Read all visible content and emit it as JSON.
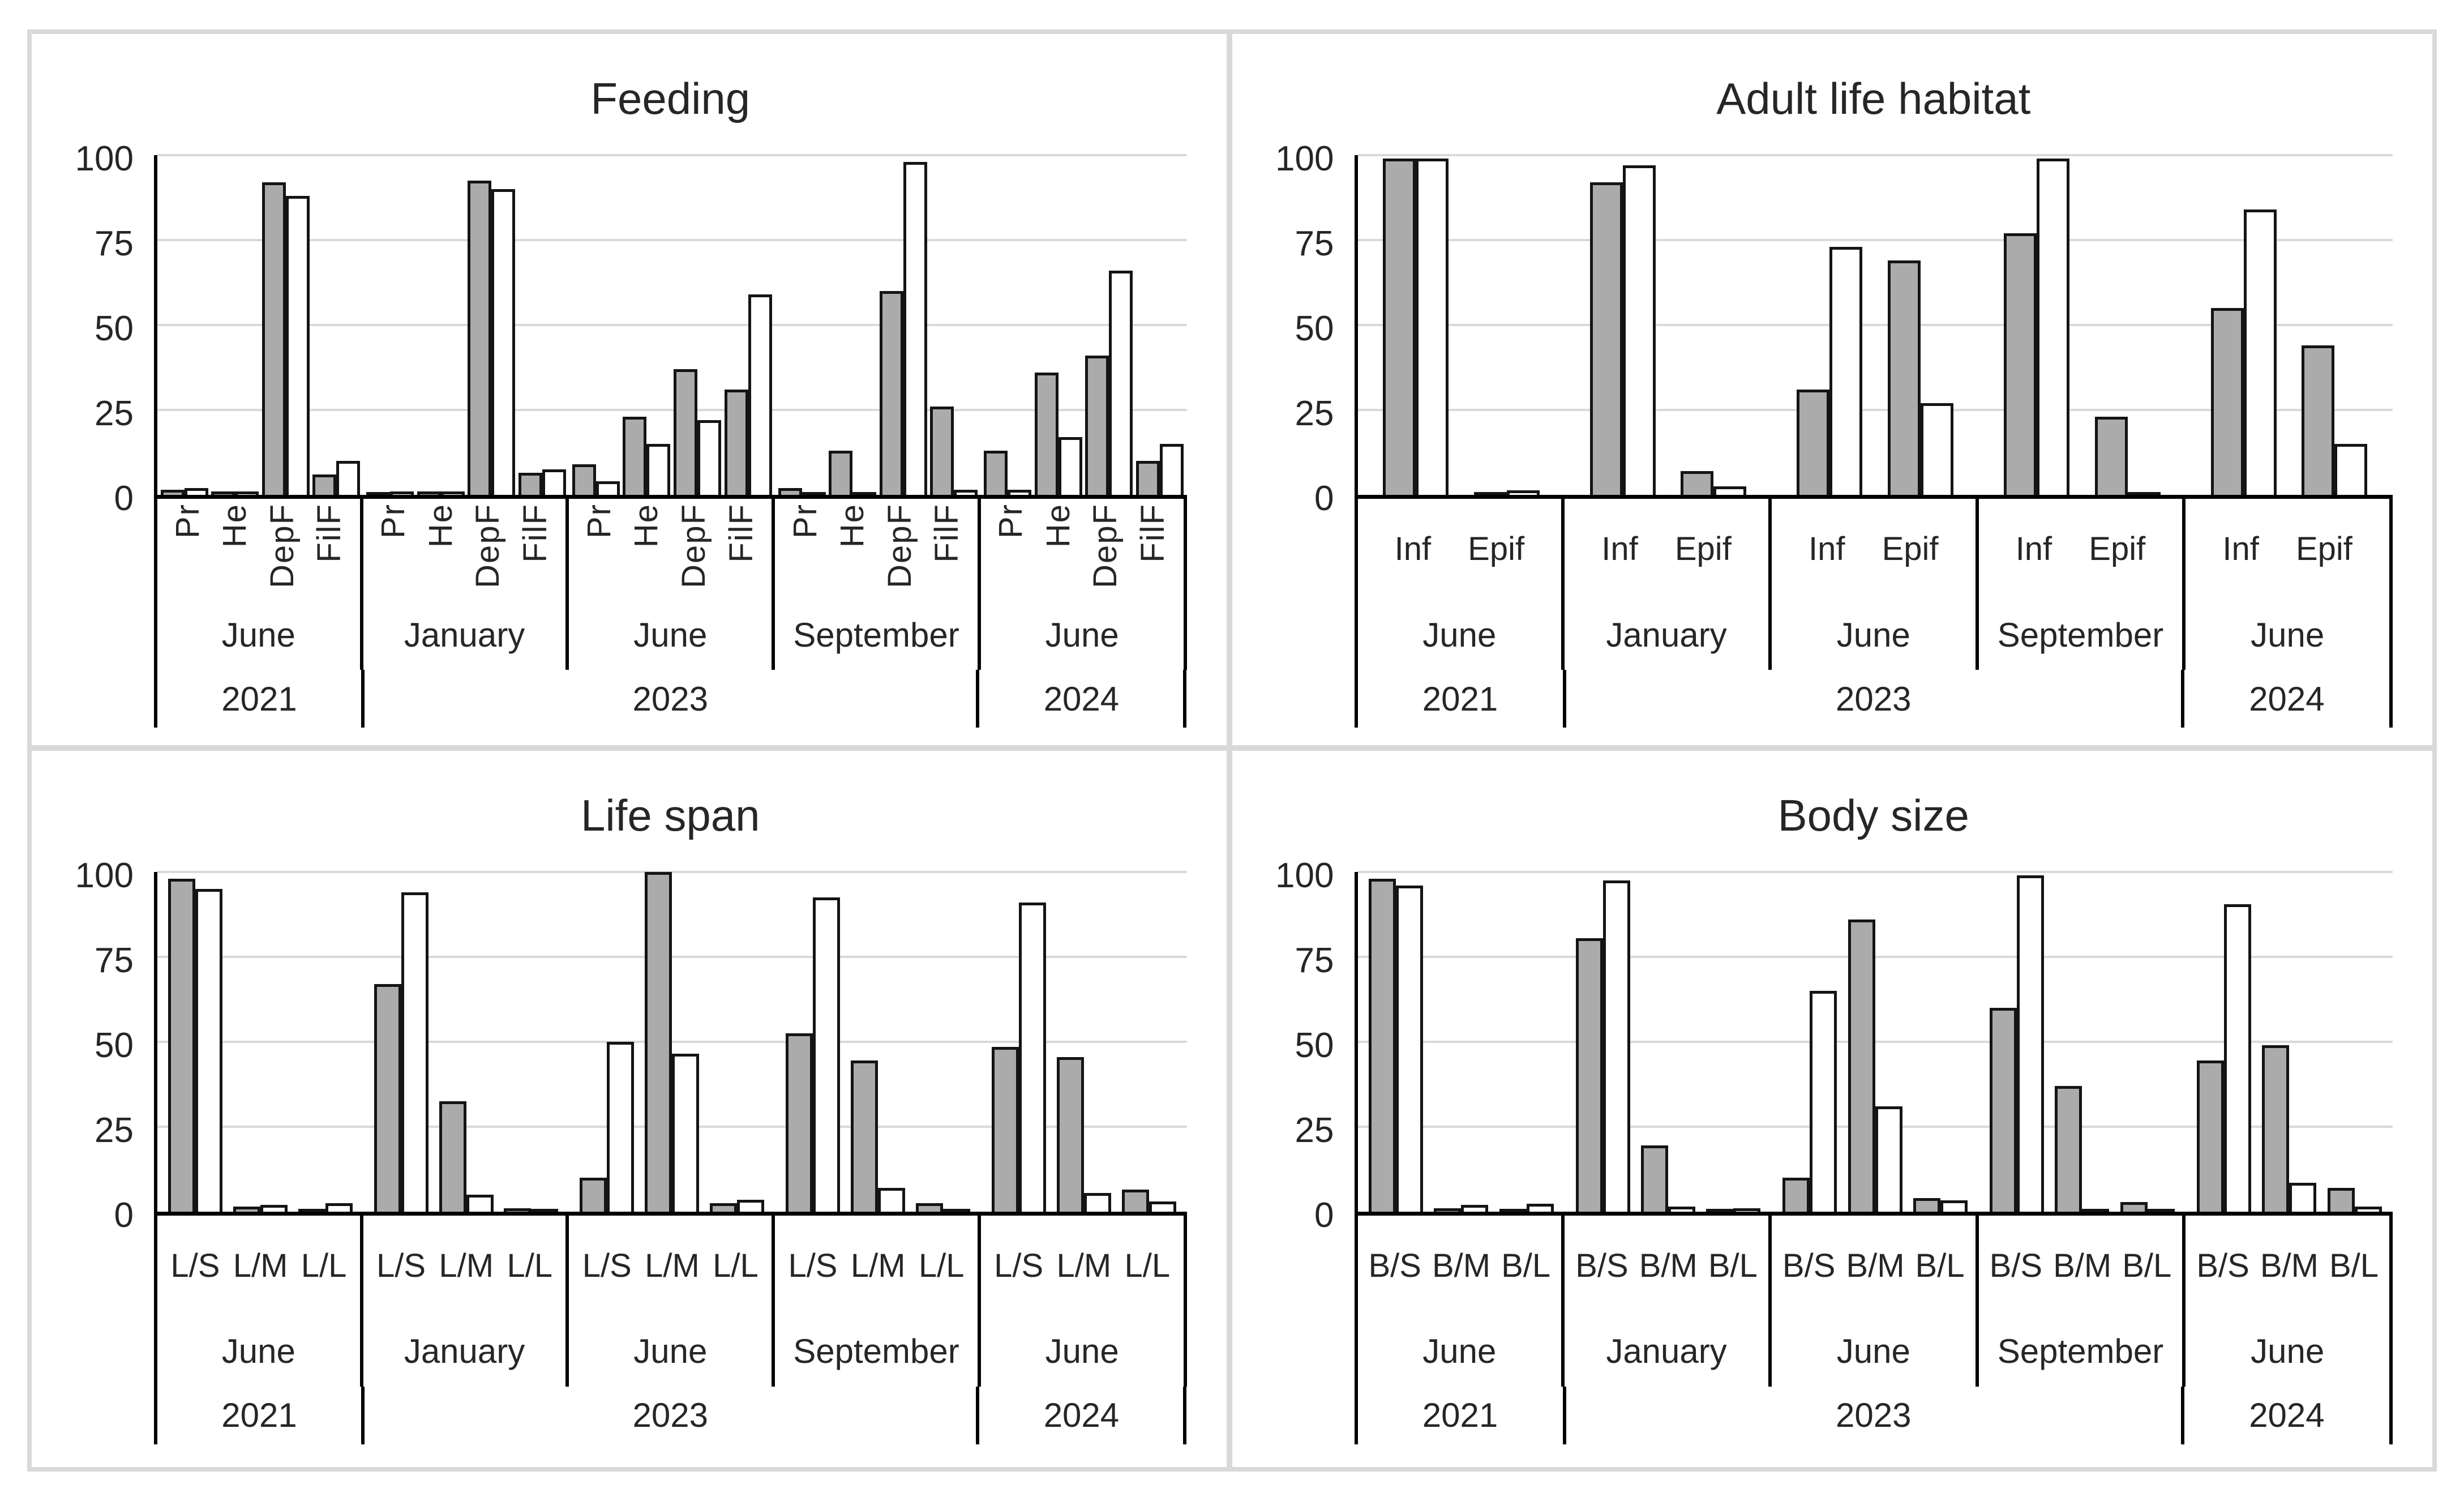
{
  "figure": {
    "background": "#ffffff",
    "frame_color": "#d9d9d9",
    "gridline_color": "#d9d9d9",
    "axis_color": "#000000",
    "bar_outline_color": "#141414",
    "series": [
      {
        "name": "gray",
        "color": "#ababab"
      },
      {
        "name": "white",
        "color": "#ffffff"
      }
    ]
  },
  "chart_data": [
    {
      "type": "bar",
      "title": "Feeding",
      "xlabel": "",
      "ylabel": "",
      "ylim": [
        0,
        100
      ],
      "yticks": [
        0,
        25,
        50,
        75,
        100
      ],
      "grid": true,
      "legend": "none",
      "layout": {
        "category_labels": "vertical"
      },
      "groups": [
        {
          "month": "June",
          "year": "2021",
          "categories": [
            "Pr",
            "He",
            "DepF",
            "FilF"
          ],
          "series": {
            "gray": [
              1.5,
              1,
              92,
              6
            ],
            "white": [
              2,
              1,
              88,
              10
            ]
          }
        },
        {
          "month": "January",
          "year": "2023",
          "categories": [
            "Pr",
            "He",
            "DepF",
            "FilF"
          ],
          "series": {
            "gray": [
              0.7,
              1,
              92.5,
              6.5
            ],
            "white": [
              1,
              1,
              90,
              7.5
            ]
          }
        },
        {
          "month": "June",
          "year": "2023",
          "categories": [
            "Pr",
            "He",
            "DepF",
            "FilF"
          ],
          "series": {
            "gray": [
              9,
              23,
              37,
              31
            ],
            "white": [
              4,
              15,
              22,
              59
            ]
          }
        },
        {
          "month": "September",
          "year": "2023",
          "categories": [
            "Pr",
            "He",
            "DepF",
            "FilF"
          ],
          "series": {
            "gray": [
              2,
              13,
              60,
              26
            ],
            "white": [
              0.3,
              0.5,
              98,
              1.5
            ]
          }
        },
        {
          "month": "June",
          "year": "2024",
          "categories": [
            "Pr",
            "He",
            "DepF",
            "FilF"
          ],
          "series": {
            "gray": [
              13,
              36,
              41,
              10
            ],
            "white": [
              1.5,
              17,
              66,
              15
            ]
          }
        }
      ],
      "years": [
        {
          "label": "2021",
          "span": 1
        },
        {
          "label": "2023",
          "span": 3
        },
        {
          "label": "2024",
          "span": 1
        }
      ]
    },
    {
      "type": "bar",
      "title": "Adult life habitat",
      "xlabel": "",
      "ylabel": "",
      "ylim": [
        0,
        100
      ],
      "yticks": [
        0,
        25,
        50,
        75,
        100
      ],
      "grid": true,
      "legend": "none",
      "layout": {
        "category_labels": "horizontal"
      },
      "groups": [
        {
          "month": "June",
          "year": "2021",
          "categories": [
            "Inf",
            "Epif"
          ],
          "series": {
            "gray": [
              99,
              0.8
            ],
            "white": [
              99,
              1.3
            ]
          }
        },
        {
          "month": "January",
          "year": "2023",
          "categories": [
            "Inf",
            "Epif"
          ],
          "series": {
            "gray": [
              92,
              7
            ],
            "white": [
              97,
              2.5
            ]
          }
        },
        {
          "month": "June",
          "year": "2023",
          "categories": [
            "Inf",
            "Epif"
          ],
          "series": {
            "gray": [
              31,
              69
            ],
            "white": [
              73,
              27
            ]
          }
        },
        {
          "month": "September",
          "year": "2023",
          "categories": [
            "Inf",
            "Epif"
          ],
          "series": {
            "gray": [
              77,
              23
            ],
            "white": [
              99,
              0.7
            ]
          }
        },
        {
          "month": "June",
          "year": "2024",
          "categories": [
            "Inf",
            "Epif"
          ],
          "series": {
            "gray": [
              55,
              44
            ],
            "white": [
              84,
              15
            ]
          }
        }
      ],
      "years": [
        {
          "label": "2021",
          "span": 1
        },
        {
          "label": "2023",
          "span": 3
        },
        {
          "label": "2024",
          "span": 1
        }
      ]
    },
    {
      "type": "bar",
      "title": "Life span",
      "xlabel": "",
      "ylabel": "",
      "ylim": [
        0,
        100
      ],
      "yticks": [
        0,
        25,
        50,
        75,
        100
      ],
      "grid": true,
      "legend": "none",
      "layout": {
        "category_labels": "horizontal"
      },
      "groups": [
        {
          "month": "June",
          "year": "2021",
          "categories": [
            "L/S",
            "L/M",
            "L/L"
          ],
          "series": {
            "gray": [
              98,
              1.5,
              0.5
            ],
            "white": [
              95,
              2,
              2.5
            ]
          }
        },
        {
          "month": "January",
          "year": "2023",
          "categories": [
            "L/S",
            "L/M",
            "L/L"
          ],
          "series": {
            "gray": [
              67,
              32.5,
              1
            ],
            "white": [
              94,
              5,
              0.3
            ]
          }
        },
        {
          "month": "June",
          "year": "2023",
          "categories": [
            "L/S",
            "L/M",
            "L/L"
          ],
          "series": {
            "gray": [
              10,
              100,
              2.5
            ],
            "white": [
              50,
              46.5,
              3.5
            ]
          }
        },
        {
          "month": "September",
          "year": "2023",
          "categories": [
            "L/S",
            "L/M",
            "L/L"
          ],
          "series": {
            "gray": [
              52.5,
              44.5,
              2.5
            ],
            "white": [
              92.5,
              7,
              0.5
            ]
          }
        },
        {
          "month": "June",
          "year": "2024",
          "categories": [
            "L/S",
            "L/M",
            "L/L"
          ],
          "series": {
            "gray": [
              48.5,
              45.5,
              6.5
            ],
            "white": [
              91,
              5.5,
              3
            ]
          }
        }
      ],
      "years": [
        {
          "label": "2021",
          "span": 1
        },
        {
          "label": "2023",
          "span": 3
        },
        {
          "label": "2024",
          "span": 1
        }
      ]
    },
    {
      "type": "bar",
      "title": "Body size",
      "xlabel": "",
      "ylabel": "",
      "ylim": [
        0,
        100
      ],
      "yticks": [
        0,
        25,
        50,
        75,
        100
      ],
      "grid": true,
      "legend": "none",
      "layout": {
        "category_labels": "horizontal"
      },
      "groups": [
        {
          "month": "June",
          "year": "2021",
          "categories": [
            "B/S",
            "B/M",
            "B/L"
          ],
          "series": {
            "gray": [
              98,
              1,
              0.8
            ],
            "white": [
              96,
              2,
              2.3
            ]
          }
        },
        {
          "month": "January",
          "year": "2023",
          "categories": [
            "B/S",
            "B/M",
            "B/L"
          ],
          "series": {
            "gray": [
              80.5,
              19.5,
              0.7
            ],
            "white": [
              97.5,
              1.5,
              1
            ]
          }
        },
        {
          "month": "June",
          "year": "2023",
          "categories": [
            "B/S",
            "B/M",
            "B/L"
          ],
          "series": {
            "gray": [
              10,
              86,
              4
            ],
            "white": [
              65,
              31,
              3.2
            ]
          }
        },
        {
          "month": "September",
          "year": "2023",
          "categories": [
            "B/S",
            "B/M",
            "B/L"
          ],
          "series": {
            "gray": [
              60,
              37,
              2.8
            ],
            "white": [
              99,
              0.5,
              0.8
            ]
          }
        },
        {
          "month": "June",
          "year": "2024",
          "categories": [
            "B/S",
            "B/M",
            "B/L"
          ],
          "series": {
            "gray": [
              44.5,
              49,
              7
            ],
            "white": [
              90.5,
              8.5,
              1.5
            ]
          }
        }
      ],
      "years": [
        {
          "label": "2021",
          "span": 1
        },
        {
          "label": "2023",
          "span": 3
        },
        {
          "label": "2024",
          "span": 1
        }
      ]
    }
  ]
}
